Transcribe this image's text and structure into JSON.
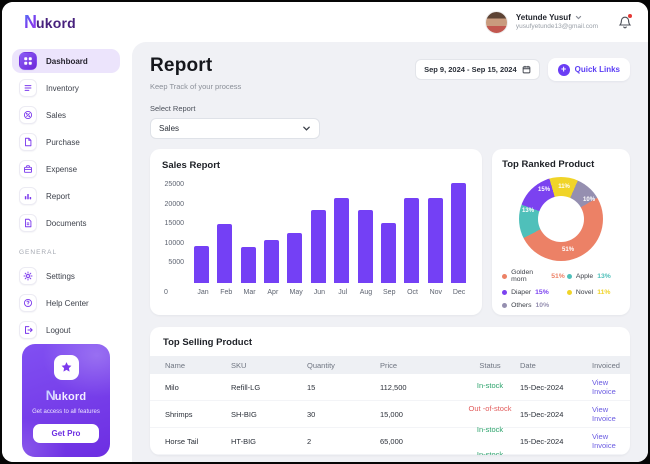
{
  "topbar": {
    "logo": {
      "n": "N",
      "rest": "ukord"
    },
    "user": {
      "name": "Yetunde Yusuf",
      "email": "yusufyetunde13@gmail.com",
      "menu_icon": "chevron-down-icon",
      "notification_icon": "bell-icon",
      "notification_badge_color": "#e53935"
    }
  },
  "sidebar": {
    "nav": [
      {
        "label": "Dashboard",
        "icon": "dashboard-icon",
        "active": true
      },
      {
        "label": "Inventory",
        "icon": "inventory-icon",
        "active": false
      },
      {
        "label": "Sales",
        "icon": "sales-icon",
        "active": false
      },
      {
        "label": "Purchase",
        "icon": "purchase-icon",
        "active": false
      },
      {
        "label": "Expense",
        "icon": "expense-icon",
        "active": false
      },
      {
        "label": "Report",
        "icon": "report-icon",
        "active": false
      },
      {
        "label": "Documents",
        "icon": "documents-icon",
        "active": false
      }
    ],
    "section_label": "GENERAL",
    "general": [
      {
        "label": "Settings",
        "icon": "settings-icon",
        "active": false
      },
      {
        "label": "Help Center",
        "icon": "help-icon",
        "active": false
      },
      {
        "label": "Logout",
        "icon": "logout-icon",
        "active": false
      }
    ],
    "promo": {
      "star_icon": "star-icon",
      "logo": {
        "n": "N",
        "rest": "ukord"
      },
      "tagline": "Get access to all features",
      "button_label": "Get Pro"
    }
  },
  "main": {
    "title": "Report",
    "subtitle": "Keep Track of your process",
    "date_range": {
      "label": "Sep 9, 2024 - Sep 15, 2024",
      "icon": "calendar-icon"
    },
    "quick_links": {
      "label": "Quick Links",
      "icon": "plus-circle-icon"
    },
    "select_report": {
      "label": "Select Report",
      "value": "Sales",
      "icon": "chevron-down-icon"
    }
  },
  "chart_data": [
    {
      "type": "bar",
      "title": "Sales Report",
      "categories": [
        "Jan",
        "Feb",
        "Mar",
        "Apr",
        "May",
        "Jun",
        "Jul",
        "Aug",
        "Sep",
        "Oct",
        "Nov",
        "Dec"
      ],
      "values": [
        9500,
        15100,
        9300,
        11000,
        12700,
        18500,
        21700,
        18500,
        15300,
        21700,
        21700,
        25500
      ],
      "xlabel": "",
      "ylabel": "",
      "ylim": [
        0,
        26500
      ],
      "yticks": [
        5000,
        10000,
        15000,
        20000,
        25000
      ],
      "x_origin_label": "0",
      "bar_color": "#7440f5",
      "grid": false,
      "legend_position": "none"
    },
    {
      "type": "pie",
      "title": "Top Ranked Product",
      "donut": true,
      "series": [
        {
          "name": "Golden morn",
          "value": 51,
          "color": "#ec8166"
        },
        {
          "name": "Apple",
          "value": 13,
          "color": "#4fc0ba"
        },
        {
          "name": "Diaper",
          "value": 15,
          "color": "#7b42f0"
        },
        {
          "name": "Novel",
          "value": 11,
          "color": "#f0d428"
        },
        {
          "name": "Others",
          "value": 10,
          "color": "#958fb0"
        }
      ],
      "clockwise_order_from_top": [
        "Novel",
        "Others",
        "Golden morn",
        "Apple",
        "Diaper"
      ],
      "slice_label_suffix": "%",
      "legend_position": "bottom"
    }
  ],
  "table": {
    "title": "Top Selling Product",
    "columns": [
      "Name",
      "SKU",
      "Quantity",
      "Price",
      "Status",
      "Date",
      "Invoiced"
    ],
    "rows": [
      {
        "name": "Milo",
        "sku": "Refill-LG",
        "quantity": "15",
        "price": "112,500",
        "status": "In-stock",
        "date": "15-Dec-2024",
        "invoiced": "View Invoice"
      },
      {
        "name": "Shrimps",
        "sku": "SH-BIG",
        "quantity": "30",
        "price": "15,000",
        "status": "Out -of-stock",
        "date": "15-Dec-2024",
        "invoiced": "View Invoice"
      },
      {
        "name": "Horse Tail",
        "sku": "HT-BIG",
        "quantity": "2",
        "price": "65,000",
        "status": "In-stock",
        "date": "15-Dec-2024",
        "invoiced": "View Invoice"
      },
      {
        "name": "",
        "sku": "",
        "quantity": "",
        "price": "",
        "status": "In-stock",
        "date": "",
        "invoiced": ""
      }
    ],
    "status_colors": {
      "In-stock": "#2ba36b",
      "Out -of-stock": "#e25c5c"
    },
    "link_color": "#6a5be2"
  }
}
